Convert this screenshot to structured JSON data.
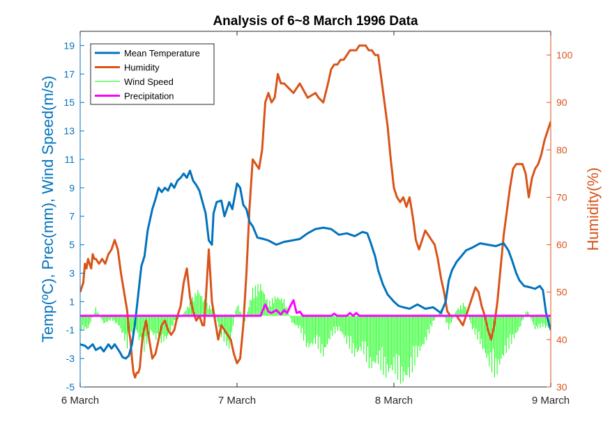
{
  "chart_data": {
    "type": "line",
    "title": "Analysis of 6~8 March 1996 Data",
    "ylabel_left": "Temp(ºC), Prec(mm), Wind Speed(m/s)",
    "ylabel_right": "Humidity(%)",
    "xlabel": "",
    "xlim": [
      0,
      3
    ],
    "ylim_left": [
      -5,
      20
    ],
    "ylim_right": [
      30,
      105
    ],
    "x_ticks": [
      0,
      1,
      2,
      3
    ],
    "x_tick_labels": [
      "6 March",
      "7 March",
      "8 March",
      "9 March"
    ],
    "y_left_ticks": [
      -5,
      -3,
      -1,
      1,
      3,
      5,
      7,
      9,
      11,
      13,
      15,
      17,
      19
    ],
    "y_right_ticks": [
      30,
      40,
      50,
      60,
      70,
      80,
      90,
      100
    ],
    "grid": false,
    "legend_position": "top-left",
    "colors": {
      "left_axis": "#0072BD",
      "right_axis": "#D95319",
      "temperature": "#0072BD",
      "humidity": "#D95319",
      "wind": "#00FF00",
      "precip": "#FF00FF",
      "axis_dark": "#262626"
    },
    "series": [
      {
        "name": "Mean Temperature",
        "axis": "left",
        "style": "line",
        "x": [
          0.0,
          0.03,
          0.05,
          0.08,
          0.1,
          0.13,
          0.15,
          0.18,
          0.2,
          0.22,
          0.25,
          0.27,
          0.29,
          0.31,
          0.33,
          0.35,
          0.37,
          0.39,
          0.41,
          0.43,
          0.46,
          0.48,
          0.5,
          0.52,
          0.54,
          0.56,
          0.58,
          0.6,
          0.62,
          0.64,
          0.66,
          0.68,
          0.7,
          0.72,
          0.74,
          0.76,
          0.78,
          0.8,
          0.82,
          0.84,
          0.85,
          0.87,
          0.9,
          0.92,
          0.95,
          0.97,
          1.0,
          1.02,
          1.04,
          1.06,
          1.08,
          1.1,
          1.13,
          1.17,
          1.2,
          1.25,
          1.3,
          1.35,
          1.4,
          1.45,
          1.5,
          1.55,
          1.6,
          1.65,
          1.7,
          1.75,
          1.8,
          1.83,
          1.85,
          1.88,
          1.9,
          1.93,
          1.96,
          2.0,
          2.03,
          2.06,
          2.1,
          2.15,
          2.2,
          2.25,
          2.3,
          2.33,
          2.35,
          2.37,
          2.4,
          2.43,
          2.46,
          2.5,
          2.55,
          2.6,
          2.65,
          2.7,
          2.73,
          2.75,
          2.78,
          2.8,
          2.83,
          2.87,
          2.9,
          2.93,
          2.95,
          2.97,
          3.0
        ],
        "values": [
          -2.0,
          -2.1,
          -2.3,
          -2.0,
          -2.4,
          -2.2,
          -2.5,
          -2.0,
          -2.3,
          -2.0,
          -2.5,
          -2.9,
          -3.0,
          -2.8,
          -2.0,
          -0.5,
          1.5,
          3.5,
          4.2,
          6.0,
          7.5,
          8.2,
          9.0,
          8.7,
          9.0,
          8.8,
          9.3,
          9.0,
          9.5,
          9.7,
          10.0,
          9.7,
          10.2,
          9.5,
          9.2,
          8.8,
          8.0,
          7.2,
          5.3,
          5.0,
          7.2,
          8.0,
          8.1,
          7.0,
          8.0,
          7.5,
          9.3,
          9.0,
          7.8,
          7.5,
          6.6,
          6.3,
          5.5,
          5.4,
          5.3,
          5.0,
          5.2,
          5.3,
          5.4,
          5.8,
          6.1,
          6.2,
          6.1,
          5.7,
          5.8,
          5.6,
          5.9,
          5.8,
          5.2,
          4.2,
          3.2,
          2.2,
          1.5,
          1.0,
          0.7,
          0.6,
          0.5,
          0.8,
          0.5,
          0.6,
          0.2,
          1.0,
          2.5,
          3.2,
          3.8,
          4.2,
          4.6,
          4.8,
          5.1,
          5.0,
          4.9,
          5.1,
          4.6,
          4.0,
          3.0,
          2.5,
          2.1,
          2.0,
          1.9,
          2.1,
          1.8,
          0.2,
          -1.0
        ]
      },
      {
        "name": "Humidity",
        "axis": "right",
        "style": "line",
        "x": [
          0.0,
          0.02,
          0.03,
          0.04,
          0.05,
          0.06,
          0.07,
          0.08,
          0.09,
          0.1,
          0.12,
          0.14,
          0.16,
          0.18,
          0.2,
          0.22,
          0.24,
          0.26,
          0.28,
          0.3,
          0.31,
          0.32,
          0.33,
          0.34,
          0.35,
          0.36,
          0.37,
          0.38,
          0.39,
          0.4,
          0.42,
          0.44,
          0.46,
          0.48,
          0.5,
          0.52,
          0.54,
          0.56,
          0.58,
          0.6,
          0.62,
          0.64,
          0.66,
          0.68,
          0.7,
          0.72,
          0.74,
          0.76,
          0.78,
          0.79,
          0.8,
          0.82,
          0.84,
          0.86,
          0.88,
          0.9,
          0.92,
          0.94,
          0.96,
          0.98,
          1.0,
          1.02,
          1.04,
          1.06,
          1.08,
          1.1,
          1.12,
          1.14,
          1.16,
          1.18,
          1.2,
          1.22,
          1.24,
          1.26,
          1.28,
          1.3,
          1.33,
          1.36,
          1.4,
          1.45,
          1.5,
          1.52,
          1.55,
          1.58,
          1.6,
          1.62,
          1.64,
          1.66,
          1.68,
          1.7,
          1.72,
          1.74,
          1.76,
          1.78,
          1.8,
          1.82,
          1.84,
          1.86,
          1.88,
          1.9,
          1.92,
          1.94,
          1.96,
          1.98,
          2.0,
          2.02,
          2.04,
          2.06,
          2.08,
          2.1,
          2.12,
          2.14,
          2.16,
          2.18,
          2.2,
          2.22,
          2.24,
          2.26,
          2.28,
          2.3,
          2.32,
          2.34,
          2.36,
          2.38,
          2.4,
          2.42,
          2.44,
          2.46,
          2.48,
          2.5,
          2.52,
          2.54,
          2.56,
          2.58,
          2.6,
          2.62,
          2.64,
          2.66,
          2.68,
          2.7,
          2.72,
          2.74,
          2.76,
          2.78,
          2.8,
          2.82,
          2.84,
          2.86,
          2.88,
          2.9,
          2.92,
          2.94,
          2.96,
          2.98,
          3.0
        ],
        "values": [
          50,
          52,
          56,
          55,
          57,
          56,
          55,
          58,
          57,
          57,
          56,
          57,
          56,
          58,
          59,
          61,
          59,
          54,
          50,
          46,
          42,
          40,
          36,
          33,
          32,
          33,
          33,
          34,
          38,
          41,
          44,
          40,
          36,
          37,
          40,
          43,
          44,
          42,
          41,
          42,
          45,
          47,
          52,
          55,
          49,
          46,
          44,
          45,
          43,
          43,
          48,
          59,
          48,
          44,
          40,
          43,
          42,
          41,
          40,
          37,
          35,
          36,
          43,
          54,
          68,
          78,
          77,
          76,
          80,
          90,
          92,
          90,
          91,
          96,
          94,
          94,
          93,
          92,
          94,
          91,
          92,
          91,
          90,
          94,
          97,
          98,
          98,
          99,
          99,
          100,
          101,
          101,
          101,
          102,
          102,
          102,
          101,
          101,
          100,
          100,
          95,
          90,
          85,
          78,
          72,
          70,
          69,
          70,
          68,
          70,
          66,
          61,
          59,
          61,
          63,
          62,
          61,
          60,
          57,
          53,
          50,
          46,
          45,
          45,
          45,
          44,
          43,
          45,
          47,
          49,
          51,
          50,
          47,
          45,
          42,
          40,
          43,
          48,
          55,
          62,
          67,
          72,
          76,
          77,
          77,
          77,
          75,
          70,
          74,
          76,
          77,
          79,
          82,
          84,
          86
        ]
      },
      {
        "name": "Wind Speed",
        "axis": "left",
        "style": "spikes",
        "x": [
          0.0,
          0.05,
          0.1,
          0.15,
          0.2,
          0.25,
          0.3,
          0.35,
          0.4,
          0.45,
          0.5,
          0.55,
          0.6,
          0.65,
          0.7,
          0.75,
          0.8,
          0.85,
          0.9,
          0.95,
          1.0,
          1.05,
          1.1,
          1.15,
          1.2,
          1.25,
          1.3,
          1.35,
          1.4,
          1.45,
          1.5,
          1.55,
          1.6,
          1.65,
          1.7,
          1.75,
          1.8,
          1.85,
          1.9,
          1.95,
          2.0,
          2.05,
          2.1,
          2.15,
          2.2,
          2.25,
          2.3,
          2.35,
          2.4,
          2.45,
          2.5,
          2.55,
          2.6,
          2.65,
          2.7,
          2.75,
          2.8,
          2.85,
          2.9,
          2.95,
          3.0
        ],
        "values": [
          -1.0,
          -1.0,
          0.6,
          -0.6,
          -0.3,
          -0.8,
          -2.3,
          -0.8,
          -2.8,
          -1.2,
          -2.0,
          -1.8,
          -0.5,
          0.0,
          1.0,
          2.0,
          1.0,
          0.5,
          -1.5,
          -2.5,
          1.0,
          -0.5,
          2.0,
          2.4,
          1.0,
          1.5,
          1.2,
          -0.5,
          -1.0,
          -2.5,
          -2.0,
          -3.0,
          -1.5,
          -1.0,
          -2.0,
          -3.0,
          -2.5,
          -4.0,
          -3.5,
          -4.5,
          -4.0,
          -5.0,
          -4.5,
          -3.0,
          -2.0,
          -0.5,
          0.5,
          -1.0,
          0.5,
          1.0,
          -1.0,
          -2.0,
          -3.5,
          -4.5,
          -3.0,
          -2.0,
          -1.0,
          0.5,
          -1.0,
          -0.8,
          -1.0
        ]
      },
      {
        "name": "Precipitation",
        "axis": "left",
        "style": "line",
        "x": [
          0.0,
          1.15,
          1.18,
          1.2,
          1.22,
          1.25,
          1.28,
          1.3,
          1.32,
          1.34,
          1.36,
          1.38,
          1.4,
          1.42,
          1.6,
          1.62,
          1.64,
          1.7,
          1.72,
          1.74,
          1.76,
          1.78,
          3.0
        ],
        "values": [
          0.0,
          0.0,
          0.8,
          0.3,
          0.2,
          0.4,
          0.1,
          0.4,
          0.2,
          0.7,
          1.1,
          0.2,
          0.3,
          0.0,
          0.0,
          0.15,
          0.0,
          0.0,
          0.2,
          0.0,
          0.2,
          0.0,
          0.0
        ]
      }
    ]
  }
}
